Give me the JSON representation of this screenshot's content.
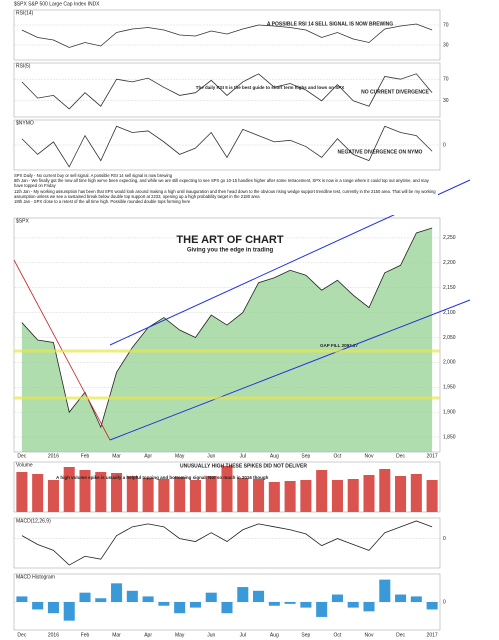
{
  "header": "$SPX S&P 500 Large Cap Index INDX",
  "commentary": [
    "SPX Daily - No current buy or sell signal. A possible RSI 14 sell signal is now brewing",
    "8th Jan - We finally got the new all time high we've been expecting, and while we are still expecting to see SPX go 10-15 handles higher after some retracement, SPX is now in a range where it could top out anytime, and may have topped on Friday",
    "11th Jan - My working assumption has been that SPX would look around making a high until inauguration and then head down to the obvious rising wedge support trendline test, currently in the 2150 area. That will be my working assumption unless we see a sustained break below double top support at 2233, opening up a high probability target in the 2180 area",
    "18th Jan - SPX close to a retest of the all time high. Possible rounded double tops forming here"
  ],
  "chart_data": [
    {
      "type": "line",
      "title": "RSI(14)",
      "color": "#333333",
      "annotations": [
        "A POSSIBLE RSI 14 SELL SIGNAL IS NOW BREWING"
      ],
      "values": [
        60,
        45,
        40,
        25,
        35,
        28,
        55,
        62,
        65,
        60,
        50,
        48,
        58,
        52,
        62,
        70,
        68,
        65,
        60,
        45,
        55,
        42,
        35,
        62,
        68,
        72,
        60
      ],
      "ylim": [
        0,
        100
      ],
      "yticks": [
        30,
        70
      ],
      "grid": true
    },
    {
      "type": "line",
      "title": "RSI(5)",
      "color": "#333333",
      "annotations": [
        "The daily RSI 5 is the best guide to short term highs and lows on SPX",
        "NO CURRENT DIVERGENCE"
      ],
      "values": [
        65,
        35,
        40,
        15,
        45,
        20,
        70,
        65,
        72,
        55,
        40,
        45,
        68,
        40,
        65,
        80,
        55,
        62,
        50,
        30,
        60,
        30,
        20,
        75,
        70,
        80,
        45
      ],
      "ylim": [
        0,
        100
      ],
      "yticks": [
        30,
        70
      ],
      "grid": true
    },
    {
      "type": "line",
      "title": "$NYMO",
      "color": "#333333",
      "annotations": [
        "NEGATIVE DIVERGENCE ON NYMO"
      ],
      "values": [
        20,
        -30,
        10,
        -70,
        30,
        -50,
        60,
        40,
        45,
        10,
        -30,
        -10,
        40,
        -40,
        50,
        30,
        10,
        15,
        -5,
        -40,
        20,
        -30,
        -50,
        60,
        40,
        30,
        -20
      ],
      "ylim": [
        -80,
        80
      ],
      "yticks": [
        0
      ],
      "grid": true
    },
    {
      "type": "area",
      "title": "$SPX",
      "color": "#8fcf8a",
      "annotations": [
        "THE ART OF CHART",
        "Giving you the edge in trading",
        "GAP FILL 2093.37"
      ],
      "categories": [
        "Dec",
        null,
        "2016",
        null,
        "Feb",
        null,
        "Mar",
        null,
        "Apr",
        null,
        "May",
        null,
        "Jun",
        null,
        "Jul",
        null,
        "Aug",
        null,
        "Sep",
        null,
        "Oct",
        null,
        "Nov",
        null,
        "Dec",
        null,
        "2017"
      ],
      "values": [
        2080,
        2045,
        2040,
        1900,
        1940,
        1870,
        1980,
        2030,
        2070,
        2090,
        2065,
        2050,
        2095,
        2075,
        2100,
        2160,
        2170,
        2185,
        2175,
        2145,
        2165,
        2135,
        2110,
        2180,
        2195,
        2260,
        2270
      ],
      "ylim": [
        1820,
        2290
      ],
      "yticks": [
        {
          "value": 1850,
          "label": "1,850"
        },
        {
          "value": 1900,
          "label": "1,900"
        },
        {
          "value": 1950,
          "label": "1,950"
        },
        {
          "value": 2000,
          "label": "2,000"
        },
        {
          "value": 2050,
          "label": "2,050"
        },
        {
          "value": 2100,
          "label": "2,100"
        },
        {
          "value": 2150,
          "label": "2,150"
        },
        {
          "value": 2200,
          "label": "2,200"
        },
        {
          "value": 2250,
          "label": "2,250"
        }
      ],
      "grid": true
    },
    {
      "type": "bar",
      "title": "Volume",
      "color": "#d9534f",
      "annotations": [
        "UNUSUALLY HIGH THESE SPIKES DID NOT DELIVER",
        "A high volume spike is usually a helpful topping and bottoming signal. Not so much in 2016 though"
      ],
      "values": [
        4.0,
        3.8,
        3.2,
        4.5,
        4.2,
        4.0,
        3.9,
        3.6,
        3.4,
        3.3,
        3.5,
        3.2,
        3.6,
        4.6,
        3.4,
        3.3,
        3.0,
        3.1,
        3.2,
        4.2,
        3.2,
        3.3,
        3.7,
        4.3,
        3.6,
        3.8,
        3.2
      ],
      "ylim": [
        0,
        5
      ],
      "yticks": [],
      "grid": false
    },
    {
      "type": "line",
      "title": "MACD(12,26,9)",
      "color": "#222222",
      "annotations": [],
      "values": [
        5,
        -10,
        -20,
        -45,
        -30,
        -35,
        5,
        20,
        25,
        20,
        0,
        -5,
        10,
        -5,
        15,
        25,
        20,
        15,
        8,
        -12,
        0,
        -10,
        -20,
        10,
        20,
        30,
        20
      ],
      "ylim": [
        -50,
        35
      ],
      "yticks": [
        0
      ],
      "grid": true
    },
    {
      "type": "bar",
      "title": "MACD Histogram",
      "color": "#3a9ad9",
      "annotations": [],
      "values": [
        3,
        -4,
        -6,
        -10,
        5,
        2,
        10,
        6,
        3,
        -2,
        -6,
        -3,
        5,
        -6,
        8,
        6,
        -2,
        -1,
        -3,
        -8,
        4,
        -3,
        -5,
        12,
        4,
        3,
        -4
      ],
      "ylim": [
        -15,
        15
      ],
      "yticks": [
        0
      ],
      "grid": true
    }
  ]
}
